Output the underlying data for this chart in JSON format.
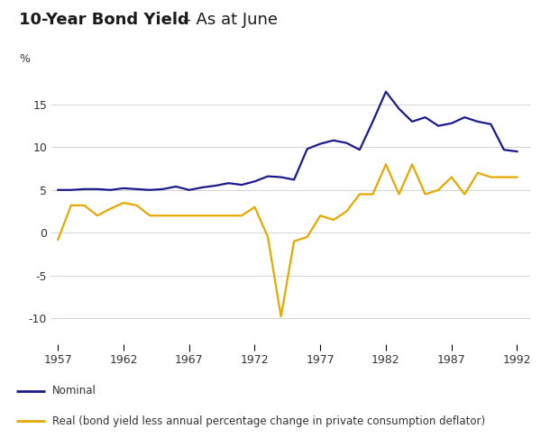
{
  "title_bold": "10-Year Bond Yield",
  "title_dash": " – ",
  "title_normal": "As at June",
  "ylabel": "%",
  "header_color": "#cfe0ea",
  "plot_bg_color": "#ffffff",
  "nominal_color": "#1a1a8c",
  "real_color": "#e6a800",
  "years": [
    1957,
    1958,
    1959,
    1960,
    1961,
    1962,
    1963,
    1964,
    1965,
    1966,
    1967,
    1968,
    1969,
    1970,
    1971,
    1972,
    1973,
    1974,
    1975,
    1976,
    1977,
    1978,
    1979,
    1980,
    1981,
    1982,
    1983,
    1984,
    1985,
    1986,
    1987,
    1988,
    1989,
    1990,
    1991,
    1992
  ],
  "nominal": [
    5.0,
    5.0,
    5.1,
    5.1,
    5.0,
    5.2,
    5.1,
    5.0,
    5.1,
    5.4,
    5.0,
    5.3,
    5.5,
    5.8,
    5.6,
    6.0,
    6.6,
    6.5,
    6.2,
    9.8,
    10.4,
    10.8,
    10.5,
    9.7,
    13.0,
    16.5,
    14.5,
    13.0,
    13.5,
    12.5,
    12.8,
    13.5,
    13.0,
    12.7,
    9.7,
    9.5
  ],
  "real": [
    -0.8,
    3.2,
    3.2,
    2.0,
    2.8,
    3.5,
    3.2,
    2.0,
    2.0,
    2.0,
    2.0,
    2.0,
    2.0,
    2.0,
    2.0,
    3.0,
    -0.5,
    -9.8,
    -1.0,
    -0.5,
    2.0,
    1.5,
    2.5,
    4.5,
    4.5,
    8.0,
    4.5,
    8.0,
    4.5,
    5.0,
    6.5,
    4.5,
    7.0,
    6.5,
    6.5,
    6.5
  ],
  "xticks": [
    1957,
    1962,
    1967,
    1972,
    1977,
    1982,
    1987,
    1992
  ],
  "yticks": [
    -10,
    -5,
    0,
    5,
    10,
    15
  ],
  "ylim": [
    -13,
    18
  ],
  "xlim": [
    1956.5,
    1993
  ],
  "green_tick_year": 1967,
  "legend_nominal_label": "Nominal",
  "legend_real_label": "Real (bond yield less annual percentage change in private consumption deflator)",
  "line_width": 1.6,
  "tick_color": "#888888",
  "green_tick_color": "#33aa55"
}
